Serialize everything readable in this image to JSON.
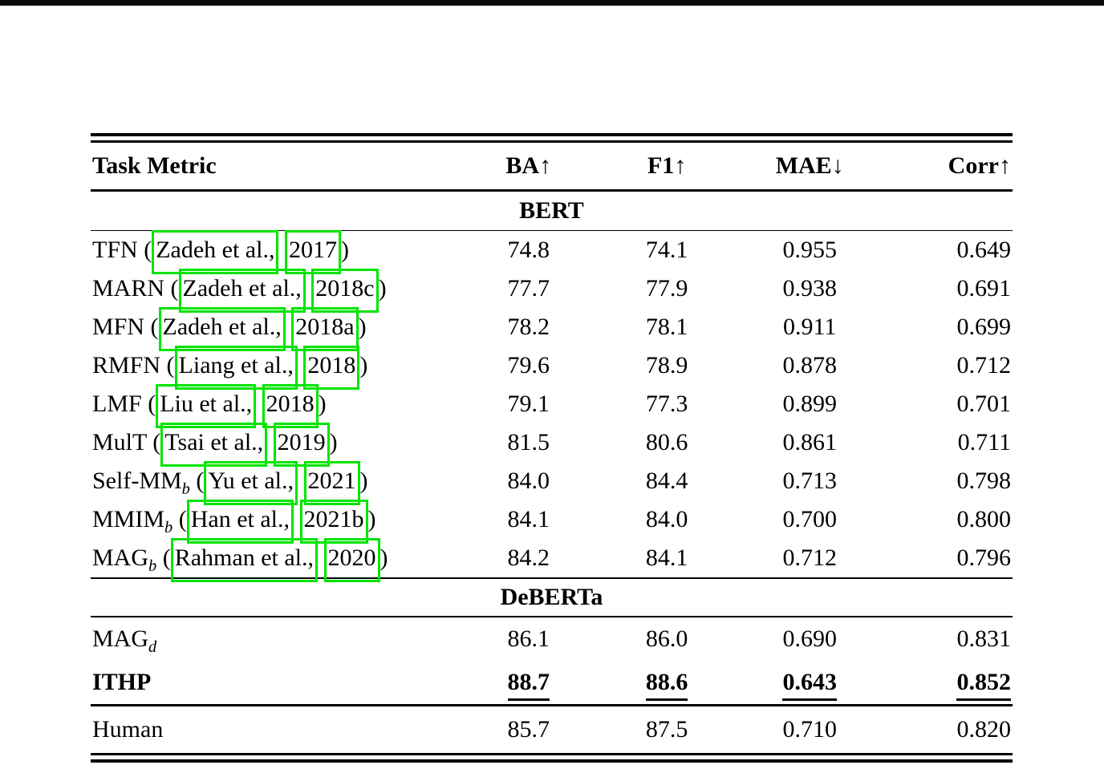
{
  "colors": {
    "link_box": "#00e400",
    "rule": "#000000",
    "page_background": "#ffffff"
  },
  "table": {
    "headers": [
      "Task Metric",
      "BA↑",
      "F1↑",
      "MAE↓",
      "Corr↑"
    ],
    "sections": [
      {
        "title": "BERT",
        "rows": [
          {
            "method": "TFN",
            "subscript": "",
            "cite_author": "Zadeh et al.,",
            "cite_year": "2017",
            "bold": false,
            "underline": false,
            "values": [
              "74.8",
              "74.1",
              "0.955",
              "0.649"
            ]
          },
          {
            "method": "MARN",
            "subscript": "",
            "cite_author": "Zadeh et al.,",
            "cite_year": "2018c",
            "bold": false,
            "underline": false,
            "values": [
              "77.7",
              "77.9",
              "0.938",
              "0.691"
            ]
          },
          {
            "method": "MFN",
            "subscript": "",
            "cite_author": "Zadeh et al.,",
            "cite_year": "2018a",
            "bold": false,
            "underline": false,
            "values": [
              "78.2",
              "78.1",
              "0.911",
              "0.699"
            ]
          },
          {
            "method": "RMFN",
            "subscript": "",
            "cite_author": "Liang et al.,",
            "cite_year": "2018",
            "bold": false,
            "underline": false,
            "values": [
              "79.6",
              "78.9",
              "0.878",
              "0.712"
            ]
          },
          {
            "method": "LMF",
            "subscript": "",
            "cite_author": "Liu et al.,",
            "cite_year": "2018",
            "bold": false,
            "underline": false,
            "values": [
              "79.1",
              "77.3",
              "0.899",
              "0.701"
            ]
          },
          {
            "method": "MulT",
            "subscript": "",
            "cite_author": "Tsai et al.,",
            "cite_year": "2019",
            "bold": false,
            "underline": false,
            "values": [
              "81.5",
              "80.6",
              "0.861",
              "0.711"
            ]
          },
          {
            "method": "Self-MM",
            "subscript": "b",
            "cite_author": "Yu et al.,",
            "cite_year": "2021",
            "bold": false,
            "underline": false,
            "values": [
              "84.0",
              "84.4",
              "0.713",
              "0.798"
            ]
          },
          {
            "method": "MMIM",
            "subscript": "b",
            "cite_author": "Han et al.,",
            "cite_year": "2021b",
            "bold": false,
            "underline": false,
            "values": [
              "84.1",
              "84.0",
              "0.700",
              "0.800"
            ]
          },
          {
            "method": "MAG",
            "subscript": "b",
            "cite_author": "Rahman et al.,",
            "cite_year": "2020",
            "bold": false,
            "underline": false,
            "values": [
              "84.2",
              "84.1",
              "0.712",
              "0.796"
            ]
          }
        ]
      },
      {
        "title": "DeBERTa",
        "rows": [
          {
            "method": "MAG",
            "subscript": "d",
            "cite_author": "",
            "cite_year": "",
            "bold": false,
            "underline": false,
            "values": [
              "86.1",
              "86.0",
              "0.690",
              "0.831"
            ]
          },
          {
            "method": "ITHP",
            "subscript": "",
            "cite_author": "",
            "cite_year": "",
            "bold": true,
            "underline": true,
            "values": [
              "88.7",
              "88.6",
              "0.643",
              "0.852"
            ]
          }
        ]
      },
      {
        "title": "",
        "rows": [
          {
            "method": "Human",
            "subscript": "",
            "cite_author": "",
            "cite_year": "",
            "bold": false,
            "underline": false,
            "values": [
              "85.7",
              "87.5",
              "0.710",
              "0.820"
            ]
          }
        ]
      }
    ]
  }
}
